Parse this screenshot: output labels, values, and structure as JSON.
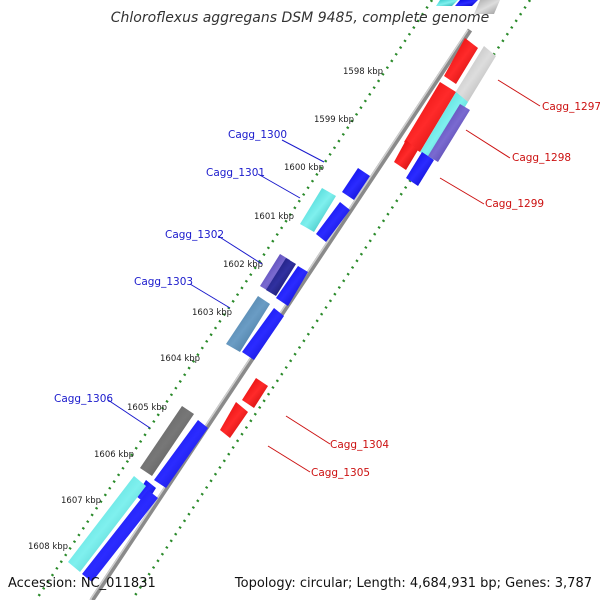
{
  "title": "Chloroflexus aggregans DSM 9485, complete genome",
  "footer": {
    "accession": "Accession: NC_011831",
    "summary": "Topology: circular; Length: 4,684,931 bp; Genes: 3,787"
  },
  "colors": {
    "forward_strand": "#1a1acc",
    "reverse_strand": "#cc1111",
    "kbp_ring": "#2a8a2a",
    "backbone": "#8a8a8a"
  },
  "kbp_ticks": [
    "1598 kbp",
    "1599 kbp",
    "1600 kbp",
    "1601 kbp",
    "1602 kbp",
    "1603 kbp",
    "1604 kbp",
    "1605 kbp",
    "1606 kbp",
    "1607 kbp",
    "1608 kbp"
  ],
  "gene_labels_left": [
    "Cagg_1300",
    "Cagg_1301",
    "Cagg_1302",
    "Cagg_1303",
    "Cagg_1306"
  ],
  "gene_labels_right": [
    "Cagg_1297",
    "Cagg_1298",
    "Cagg_1299",
    "Cagg_1304",
    "Cagg_1305"
  ]
}
